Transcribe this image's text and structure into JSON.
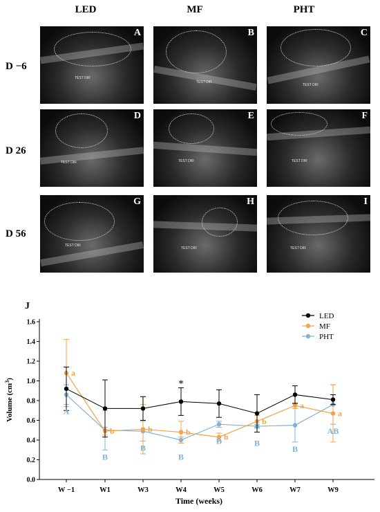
{
  "columns": [
    "LED",
    "MF",
    "PHT"
  ],
  "rows": [
    "D −6",
    "D 26",
    "D 56"
  ],
  "panels": [
    {
      "letter": "A",
      "caption": "TEST DIR"
    },
    {
      "letter": "B",
      "caption": "TEST DIR"
    },
    {
      "letter": "C",
      "caption": "TEST DIR"
    },
    {
      "letter": "D",
      "caption": "TEST DIR"
    },
    {
      "letter": "E",
      "caption": "TEST DIR"
    },
    {
      "letter": "F",
      "caption": "TEST DIR"
    },
    {
      "letter": "G",
      "caption": "TEST DIR"
    },
    {
      "letter": "H",
      "caption": "TEST DIR"
    },
    {
      "letter": "I",
      "caption": "TEST DIR"
    }
  ],
  "chart_data": {
    "type": "line",
    "panel_label": "J",
    "xlabel": "Time (weeks)",
    "ylabel": "Volume (cm³)",
    "categories": [
      "W −1",
      "W1",
      "W3",
      "W4",
      "W5",
      "W6",
      "W7",
      "W9"
    ],
    "ylim": [
      0,
      1.6
    ],
    "yticks": [
      "0.0",
      "0.2",
      "0.4",
      "0.6",
      "0.8",
      "1.0",
      "1.2",
      "1.4",
      "1.6"
    ],
    "legend_position": "top-right",
    "grid": false,
    "series": [
      {
        "name": "LED",
        "color": "#000000",
        "values": [
          0.92,
          0.72,
          0.72,
          0.79,
          0.77,
          0.67,
          0.86,
          0.81
        ],
        "errors": [
          0.22,
          0.29,
          0.12,
          0.14,
          0.14,
          0.19,
          0.09,
          0.05
        ],
        "labels": [
          "",
          "",
          "",
          "*",
          "",
          "",
          "",
          ""
        ]
      },
      {
        "name": "MF",
        "color": "#f2a34a",
        "values": [
          1.08,
          0.49,
          0.51,
          0.48,
          0.43,
          0.59,
          0.75,
          0.67
        ],
        "errors": [
          0.34,
          0.04,
          0.25,
          0.11,
          0.04,
          0.06,
          0.03,
          0.29
        ],
        "labels": [
          "a",
          "b",
          "b",
          "b",
          "b",
          "b",
          "a",
          "a"
        ]
      },
      {
        "name": "PHT",
        "color": "#7fb2d6",
        "values": [
          0.86,
          0.5,
          0.49,
          0.4,
          0.56,
          0.54,
          0.55,
          0.76
        ],
        "errors": [
          0.1,
          0.2,
          0.1,
          0.03,
          0.03,
          0.02,
          0.17,
          0.2
        ],
        "labels": [
          "A",
          "B",
          "B",
          "B",
          "B",
          "B",
          "B",
          "AB"
        ]
      }
    ]
  }
}
